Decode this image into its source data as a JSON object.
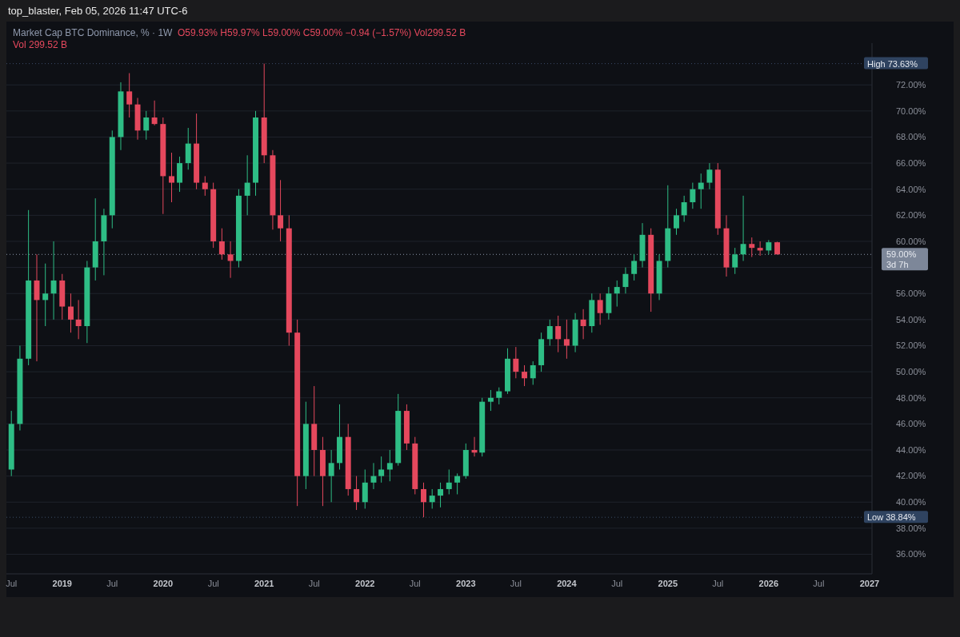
{
  "chart_data": {
    "type": "candlestick",
    "title": "Market Cap BTC Dominance, % · 1W",
    "subtitle": "top_blaster, Feb 05, 2026 11:47 UTC-6",
    "annotations": [
      "O59.93% H59.97% L59.00% C59.00% −0.94 (−1.57%) Vol299.52 B",
      "Vol 299.52 B",
      "3d 7h"
    ],
    "x": [
      "2018-07",
      "2018-08",
      "2018-09",
      "2018-10",
      "2018-11",
      "2018-12",
      "2019-01",
      "2019-02",
      "2019-03",
      "2019-04",
      "2019-05",
      "2019-06",
      "2019-07",
      "2019-08",
      "2019-09",
      "2019-10",
      "2019-11",
      "2019-12",
      "2020-01",
      "2020-02",
      "2020-03",
      "2020-04",
      "2020-05",
      "2020-06",
      "2020-07",
      "2020-08",
      "2020-09",
      "2020-10",
      "2020-11",
      "2020-12",
      "2021-01",
      "2021-02",
      "2021-03",
      "2021-04",
      "2021-05",
      "2021-06",
      "2021-07",
      "2021-08",
      "2021-09",
      "2021-10",
      "2021-11",
      "2021-12",
      "2022-01",
      "2022-02",
      "2022-03",
      "2022-04",
      "2022-05",
      "2022-06",
      "2022-07",
      "2022-08",
      "2022-09",
      "2022-10",
      "2022-11",
      "2022-12",
      "2023-01",
      "2023-02",
      "2023-03",
      "2023-04",
      "2023-05",
      "2023-06",
      "2023-07",
      "2023-08",
      "2023-09",
      "2023-10",
      "2023-11",
      "2023-12",
      "2024-01",
      "2024-02",
      "2024-03",
      "2024-04",
      "2024-05",
      "2024-06",
      "2024-07",
      "2024-08",
      "2024-09",
      "2024-10",
      "2024-11",
      "2024-12",
      "2025-01",
      "2025-02",
      "2025-03",
      "2025-04",
      "2025-05",
      "2025-06",
      "2025-07",
      "2025-08",
      "2025-09",
      "2025-10",
      "2025-11",
      "2025-12",
      "2026-01",
      "2026-02"
    ],
    "ohlc": [
      [
        42.5,
        47,
        42,
        46
      ],
      [
        46,
        52,
        45.5,
        51
      ],
      [
        51,
        62.4,
        50.5,
        57
      ],
      [
        57,
        59,
        50.8,
        55.5
      ],
      [
        55.5,
        58.3,
        53.5,
        56
      ],
      [
        56,
        60,
        54,
        57
      ],
      [
        57,
        57.5,
        54,
        55
      ],
      [
        55,
        56,
        53,
        54
      ],
      [
        54,
        55.5,
        52.5,
        53.5
      ],
      [
        53.5,
        58.5,
        52.2,
        58
      ],
      [
        58,
        63.3,
        57,
        60
      ],
      [
        60,
        62.5,
        57.4,
        62
      ],
      [
        62,
        68.5,
        61,
        68
      ],
      [
        68,
        72.2,
        67,
        71.5
      ],
      [
        71.5,
        72.9,
        69.5,
        70.5
      ],
      [
        70.5,
        71,
        67.8,
        68.5
      ],
      [
        68.5,
        70,
        67.8,
        69.5
      ],
      [
        69.5,
        70.8,
        68.9,
        69
      ],
      [
        69,
        69.5,
        62.1,
        65
      ],
      [
        65,
        66.8,
        63,
        64.5
      ],
      [
        64.5,
        66.5,
        63.8,
        66
      ],
      [
        66,
        68.7,
        65.5,
        67.5
      ],
      [
        67.5,
        69.8,
        64,
        64.5
      ],
      [
        64.5,
        65,
        63.5,
        64
      ],
      [
        64,
        64.5,
        59.5,
        60
      ],
      [
        60,
        61,
        58.6,
        59
      ],
      [
        59,
        60,
        57.2,
        58.5
      ],
      [
        58.5,
        64,
        58,
        63.5
      ],
      [
        63.5,
        66.6,
        62,
        64.5
      ],
      [
        64.5,
        70,
        63.5,
        69.5
      ],
      [
        69.5,
        73.63,
        66,
        66.6
      ],
      [
        66.6,
        67,
        60.9,
        62
      ],
      [
        62,
        64.7,
        60,
        61
      ],
      [
        61,
        62,
        52,
        53
      ],
      [
        53,
        54,
        39.7,
        42
      ],
      [
        42,
        47.7,
        41,
        46
      ],
      [
        46,
        48.9,
        42,
        44
      ],
      [
        44,
        45,
        39.7,
        42
      ],
      [
        42,
        44,
        40,
        43
      ],
      [
        43,
        47.5,
        42.5,
        45
      ],
      [
        45,
        46,
        40.5,
        41
      ],
      [
        41,
        42,
        39.4,
        40
      ],
      [
        40,
        42.5,
        39.5,
        41.5
      ],
      [
        41.5,
        43,
        41,
        42
      ],
      [
        42,
        43.5,
        41.5,
        42.5
      ],
      [
        42.5,
        44,
        41.6,
        43
      ],
      [
        43,
        48.3,
        42.8,
        47
      ],
      [
        47,
        47.5,
        44,
        44.5
      ],
      [
        44.5,
        45,
        40.6,
        41
      ],
      [
        41,
        41.5,
        38.84,
        40
      ],
      [
        40,
        41,
        39.5,
        40.5
      ],
      [
        40.5,
        41.5,
        39.6,
        41
      ],
      [
        41,
        42.5,
        40.6,
        41.5
      ],
      [
        41.5,
        42.2,
        40.6,
        42
      ],
      [
        42,
        44.5,
        41.8,
        44
      ],
      [
        44,
        45,
        43.5,
        43.8
      ],
      [
        43.8,
        48,
        43.5,
        47.7
      ],
      [
        47.7,
        48.6,
        47,
        48
      ],
      [
        48,
        48.8,
        47.5,
        48.5
      ],
      [
        48.5,
        51.8,
        48.3,
        51
      ],
      [
        51,
        51.9,
        49.5,
        50
      ],
      [
        50,
        50.5,
        48.9,
        49.5
      ],
      [
        49.5,
        50.8,
        49,
        50.5
      ],
      [
        50.5,
        53,
        50,
        52.5
      ],
      [
        52.5,
        54,
        52,
        53.5
      ],
      [
        53.5,
        54.3,
        51.5,
        52.5
      ],
      [
        52.5,
        54,
        51,
        52
      ],
      [
        52,
        54.5,
        51.5,
        54
      ],
      [
        54,
        54.8,
        52.5,
        53.5
      ],
      [
        53.5,
        56,
        53,
        55.5
      ],
      [
        55.5,
        56,
        53.6,
        54.5
      ],
      [
        54.5,
        56.5,
        54,
        56
      ],
      [
        56,
        57,
        55,
        56.5
      ],
      [
        56.5,
        58,
        56,
        57.5
      ],
      [
        57.5,
        59,
        57,
        58.5
      ],
      [
        58.5,
        61.4,
        58,
        60.5
      ],
      [
        60.5,
        61,
        54.6,
        56
      ],
      [
        56,
        59,
        55.5,
        58.5
      ],
      [
        58.5,
        64.3,
        58,
        61
      ],
      [
        61,
        62.5,
        60.5,
        62
      ],
      [
        62,
        63.5,
        61.5,
        63
      ],
      [
        63,
        64.5,
        62.5,
        64
      ],
      [
        64,
        65.2,
        62.5,
        64.5
      ],
      [
        64.5,
        66,
        64,
        65.5
      ],
      [
        65.5,
        66,
        60.5,
        61
      ],
      [
        61,
        62,
        57.3,
        58
      ],
      [
        58,
        59.5,
        57.5,
        59
      ],
      [
        59,
        63.5,
        58.5,
        59.8
      ],
      [
        59.8,
        60.3,
        58.8,
        59.5
      ],
      [
        59.5,
        60,
        58.9,
        59.3
      ],
      [
        59.3,
        60.1,
        59,
        59.93
      ],
      [
        59.93,
        59.97,
        59,
        59
      ]
    ],
    "xlim": [
      "2018-06-13",
      "2027-01-10"
    ],
    "xticks": [
      {
        "value": "2018-07",
        "label": "Jul"
      },
      "2019",
      {
        "value": "2019-07",
        "label": "Jul"
      },
      "2020",
      {
        "value": "2020-07",
        "label": "Jul"
      },
      "2021",
      {
        "value": "2021-07",
        "label": "Jul"
      },
      "2022",
      {
        "value": "2022-07",
        "label": "Jul"
      },
      "2023",
      {
        "value": "2023-07",
        "label": "Jul"
      },
      "2024",
      {
        "value": "2024-07",
        "label": "Jul"
      },
      "2025",
      {
        "value": "2025-07",
        "label": "Jul"
      },
      "2026",
      {
        "value": "2026-07",
        "label": "Jul"
      },
      "2027"
    ],
    "ylim": [
      34.5,
      75.2
    ],
    "yticks": [
      {
        "value": 36,
        "label": "36.00%"
      },
      {
        "value": 38,
        "label": "38.00%"
      },
      {
        "value": 40,
        "label": "40.00%"
      },
      {
        "value": 42,
        "label": "42.00%"
      },
      {
        "value": 44,
        "label": "44.00%"
      },
      {
        "value": 46,
        "label": "46.00%"
      },
      {
        "value": 48,
        "label": "48.00%"
      },
      {
        "value": 50,
        "label": "50.00%"
      },
      {
        "value": 52,
        "label": "52.00%"
      },
      {
        "value": 54,
        "label": "54.00%"
      },
      {
        "value": 56,
        "label": "56.00%"
      },
      {
        "value": 58,
        "label": null
      },
      {
        "value": 60,
        "label": "60.00%"
      },
      {
        "value": 62,
        "label": "62.00%"
      },
      {
        "value": 64,
        "label": "64.00%"
      },
      {
        "value": 66,
        "label": "66.00%"
      },
      {
        "value": 68,
        "label": "68.00%"
      },
      {
        "value": 70,
        "label": "70.00%"
      },
      {
        "value": 72,
        "label": "72.00%"
      }
    ],
    "ref_lines": [
      {
        "axis": "y",
        "value": 73.63,
        "label": "High 73.63%",
        "color": "#3b4a66",
        "line_style": "dotted"
      },
      {
        "axis": "y",
        "value": 38.84,
        "label": "Low 38.84%",
        "color": "#3b4a66",
        "line_style": "dotted"
      },
      {
        "axis": "y",
        "value": 59,
        "label": "59.00%",
        "color": "#8a94a8",
        "line_style": "dotted"
      }
    ],
    "grid": "y"
  }
}
